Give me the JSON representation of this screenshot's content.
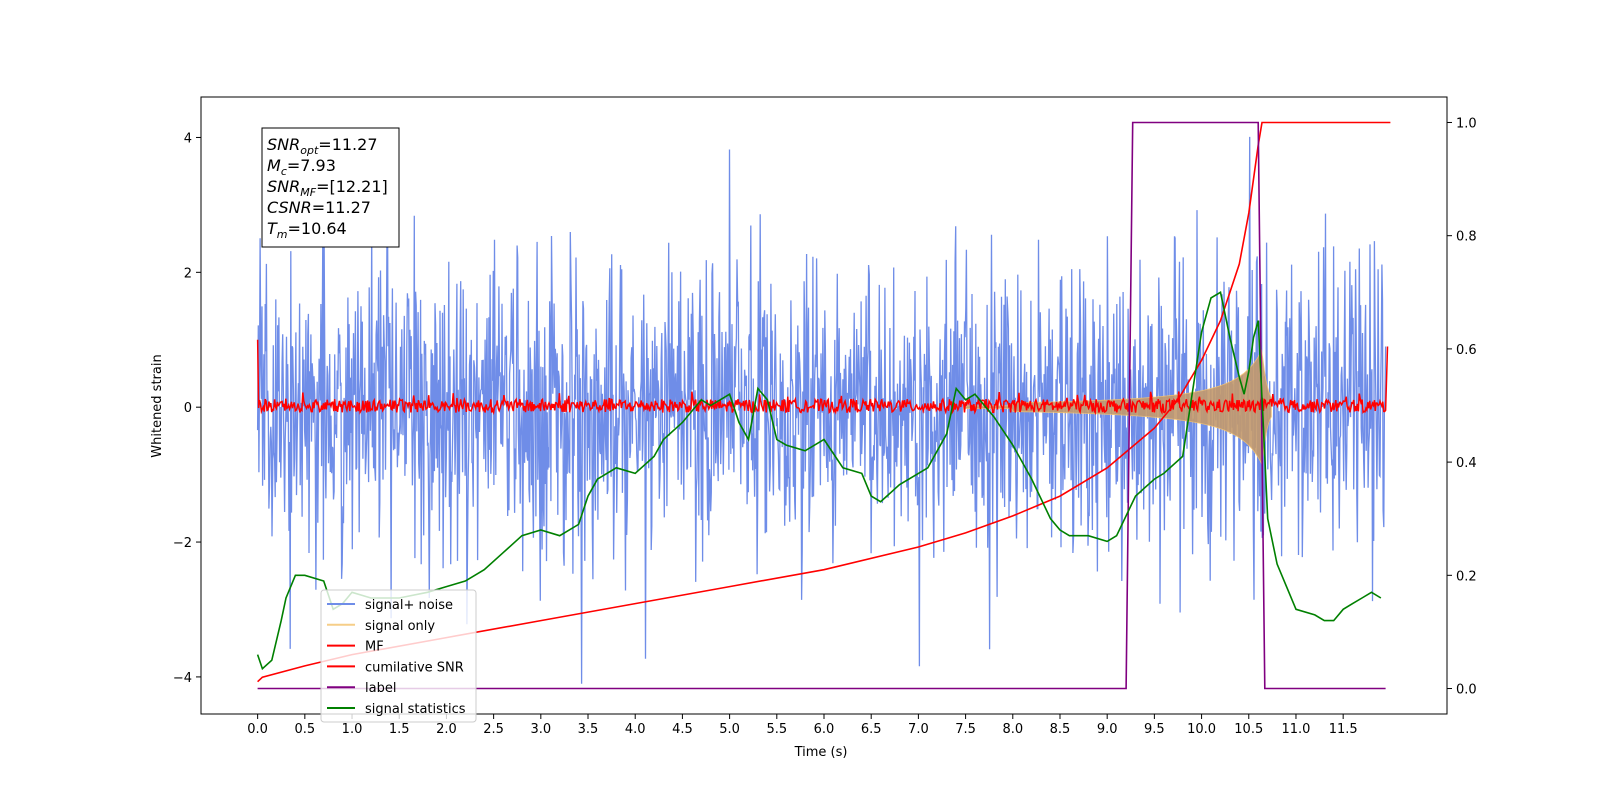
{
  "chart_data": {
    "type": "line",
    "title": "",
    "xlabel": "Time (s)",
    "ylabel": "Whitened strain",
    "y2label": "",
    "xlim": [
      -0.6,
      12.6
    ],
    "ylim": [
      -4.55,
      4.6
    ],
    "y2lim": [
      -0.045,
      1.045
    ],
    "xticks": [
      "0.0",
      "0.5",
      "1.0",
      "1.5",
      "2.0",
      "2.5",
      "3.0",
      "3.5",
      "4.0",
      "4.5",
      "5.0",
      "5.5",
      "6.0",
      "6.5",
      "7.0",
      "7.5",
      "8.0",
      "8.5",
      "9.0",
      "9.5",
      "10.0",
      "10.5",
      "11.0",
      "11.5"
    ],
    "yticks": [
      "-4",
      "-2",
      "0",
      "2",
      "4"
    ],
    "y2ticks": [
      "0.0",
      "0.2",
      "0.4",
      "0.6",
      "0.8",
      "1.0"
    ],
    "grid": false,
    "legend_position": "lower-left",
    "colors": {
      "signal_noise": "#6f8de8",
      "signal_only": "#f5c26b",
      "signal_fill": "#c49a6c",
      "mf": "#ff0000",
      "cumulative_snr": "#ff0000",
      "label": "#800080",
      "signal_statistics": "#008000"
    },
    "legend": [
      {
        "name": "signal+ noise",
        "key": "signal_noise"
      },
      {
        "name": "signal only",
        "key": "signal_only"
      },
      {
        "name": "MF",
        "key": "mf"
      },
      {
        "name": "cumilative SNR",
        "key": "cumulative_snr"
      },
      {
        "name": "label",
        "key": "label"
      },
      {
        "name": "signal statistics",
        "key": "signal_statistics"
      }
    ],
    "annotation": [
      {
        "base": "SNR",
        "sub": "opt",
        "text": "=11.27"
      },
      {
        "base": "M",
        "sub": "c",
        "text": "=7.93"
      },
      {
        "base": "SNR",
        "sub": "MF",
        "text": "=[12.21]"
      },
      {
        "base": "CSNR",
        "sub": "",
        "text": "=11.27"
      },
      {
        "base": "T",
        "sub": "m",
        "text": "=10.64"
      }
    ],
    "series": [
      {
        "name": "cumilative SNR",
        "axis": "right",
        "x": [
          0.0,
          0.05,
          0.5,
          1.0,
          2.0,
          3.0,
          4.0,
          5.0,
          6.0,
          7.0,
          7.5,
          8.0,
          8.5,
          9.0,
          9.5,
          9.75,
          10.0,
          10.2,
          10.4,
          10.5,
          10.55,
          10.6,
          10.64,
          10.7,
          11.0,
          11.5,
          12.0
        ],
        "y": [
          0.012,
          0.02,
          0.04,
          0.06,
          0.09,
          0.12,
          0.15,
          0.18,
          0.21,
          0.25,
          0.275,
          0.305,
          0.34,
          0.39,
          0.46,
          0.51,
          0.58,
          0.65,
          0.75,
          0.84,
          0.9,
          0.96,
          1.0,
          1.0,
          1.0,
          1.0,
          1.0
        ]
      },
      {
        "name": "label",
        "axis": "right",
        "x": [
          0.0,
          9.2,
          9.27,
          10.6,
          10.67,
          11.95
        ],
        "y": [
          0.0,
          0.0,
          1.0,
          1.0,
          0.0,
          0.0
        ]
      },
      {
        "name": "signal statistics",
        "axis": "right",
        "x": [
          0.0,
          0.05,
          0.15,
          0.25,
          0.3,
          0.4,
          0.5,
          0.7,
          0.8,
          0.9,
          1.0,
          1.2,
          1.5,
          1.8,
          2.0,
          2.2,
          2.4,
          2.6,
          2.8,
          3.0,
          3.2,
          3.4,
          3.5,
          3.6,
          3.8,
          4.0,
          4.2,
          4.3,
          4.5,
          4.7,
          4.8,
          5.0,
          5.1,
          5.2,
          5.3,
          5.4,
          5.5,
          5.6,
          5.8,
          6.0,
          6.2,
          6.4,
          6.5,
          6.6,
          6.8,
          7.0,
          7.1,
          7.3,
          7.4,
          7.5,
          7.6,
          7.8,
          8.0,
          8.2,
          8.4,
          8.5,
          8.6,
          8.8,
          9.0,
          9.1,
          9.3,
          9.5,
          9.6,
          9.8,
          9.9,
          10.0,
          10.1,
          10.2,
          10.3,
          10.4,
          10.45,
          10.5,
          10.55,
          10.6,
          10.65,
          10.7,
          10.8,
          10.9,
          11.0,
          11.2,
          11.3,
          11.4,
          11.5,
          11.6,
          11.7,
          11.8,
          11.9
        ],
        "y": [
          0.06,
          0.035,
          0.05,
          0.12,
          0.16,
          0.2,
          0.2,
          0.19,
          0.14,
          0.15,
          0.17,
          0.16,
          0.16,
          0.17,
          0.18,
          0.19,
          0.21,
          0.24,
          0.27,
          0.28,
          0.27,
          0.29,
          0.34,
          0.37,
          0.39,
          0.38,
          0.41,
          0.44,
          0.47,
          0.51,
          0.5,
          0.52,
          0.47,
          0.44,
          0.53,
          0.51,
          0.44,
          0.43,
          0.42,
          0.44,
          0.39,
          0.38,
          0.34,
          0.33,
          0.36,
          0.38,
          0.39,
          0.45,
          0.53,
          0.51,
          0.52,
          0.48,
          0.43,
          0.37,
          0.3,
          0.28,
          0.27,
          0.27,
          0.26,
          0.27,
          0.34,
          0.37,
          0.38,
          0.41,
          0.52,
          0.63,
          0.69,
          0.7,
          0.62,
          0.55,
          0.52,
          0.56,
          0.62,
          0.65,
          0.48,
          0.3,
          0.22,
          0.18,
          0.14,
          0.13,
          0.12,
          0.12,
          0.14,
          0.15,
          0.16,
          0.17,
          0.16
        ]
      }
    ],
    "signal_noise": {
      "axis": "left",
      "band_sd": 1.1,
      "seed": 7,
      "samples": 1800
    },
    "mf": {
      "axis": "left",
      "band": [
        -0.1,
        0.15
      ],
      "start_spike": 1.0,
      "end_spike": 0.9
    },
    "signal_only": {
      "axis": "left",
      "merger_time": 10.64,
      "max_amplitude": 0.85,
      "onset": 8.0
    }
  }
}
